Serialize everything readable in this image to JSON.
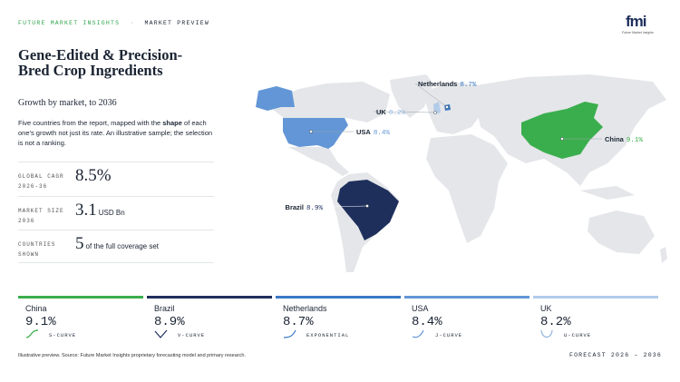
{
  "header": {
    "brand": "FUTURE MARKET INSIGHTS",
    "separator": "·",
    "section": "MARKET PREVIEW",
    "logo": "fmi",
    "logo_caption": "Future Market Insights"
  },
  "title": "Gene-Edited & Precision-Bred Crop Ingredients",
  "subtitle": "Growth by market, to 2036",
  "description": {
    "intro": "Five countries from the report, mapped with the",
    "emphasis": "shape",
    "rest": "of each one's growth not just its rate. An illustrative sample; the selection is not a ranking."
  },
  "stats": [
    {
      "label": "GLOBAL CAGR 2026-36",
      "value": "8.5%",
      "unit": ""
    },
    {
      "label": "MARKET SIZE 2036",
      "value": "3.1",
      "unit": "USD Bn"
    },
    {
      "label": "COUNTRIES SHOWN",
      "value": "5",
      "unit": "of the full coverage set"
    }
  ],
  "markets": [
    {
      "name": "China",
      "value": "9.1%",
      "curve": "S-CURVE",
      "color": "#3aae4d"
    },
    {
      "name": "Brazil",
      "value": "8.9%",
      "curve": "V-CURVE",
      "color": "#1e2f5c"
    },
    {
      "name": "Netherlands",
      "value": "8.7%",
      "curve": "EXPONENTIAL",
      "color": "#3a78c4"
    },
    {
      "name": "USA",
      "value": "8.4%",
      "curve": "J-CURVE",
      "color": "#6296d6"
    },
    {
      "name": "UK",
      "value": "8.2%",
      "curve": "U-CURVE",
      "color": "#b2cbe9"
    }
  ],
  "footer": {
    "source": "Illustrative preview. Source: Future Market Insights proprietary forecasting model and primary research.",
    "range": "FORECAST 2026 – 2036"
  }
}
